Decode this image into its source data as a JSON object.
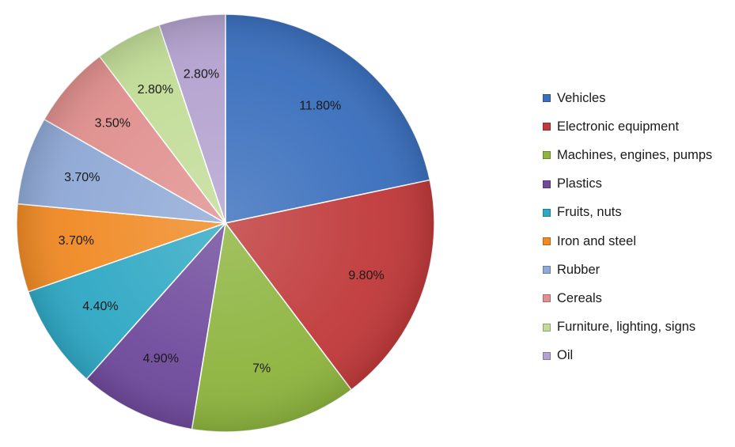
{
  "chart_data": {
    "type": "pie",
    "title": "",
    "legend_position": "right",
    "slices": [
      {
        "name": "Vehicles",
        "value": 11.8,
        "label": "11.80%",
        "color": "#3a6fbd"
      },
      {
        "name": "Electronic equipment",
        "value": 9.8,
        "label": "9.80%",
        "color": "#c0393a"
      },
      {
        "name": "Machines, engines, pumps",
        "value": 7.0,
        "label": "7%",
        "color": "#8db43e"
      },
      {
        "name": "Plastics",
        "value": 4.9,
        "label": "4.90%",
        "color": "#6f4a9c"
      },
      {
        "name": "Fruits, nuts",
        "value": 4.4,
        "label": "4.40%",
        "color": "#2fa8c4"
      },
      {
        "name": "Iron and steel",
        "value": 3.7,
        "label": "3.70%",
        "color": "#f08a25"
      },
      {
        "name": "Rubber",
        "value": 3.7,
        "label": "3.70%",
        "color": "#8fa9d6"
      },
      {
        "name": "Cereals",
        "value": 3.5,
        "label": "3.50%",
        "color": "#e0908e"
      },
      {
        "name": "Furniture, lighting, signs",
        "value": 2.8,
        "label": "2.80%",
        "color": "#c2dc97"
      },
      {
        "name": "Oil",
        "value": 2.8,
        "label": "2.80%",
        "color": "#b3a2cf"
      }
    ]
  }
}
